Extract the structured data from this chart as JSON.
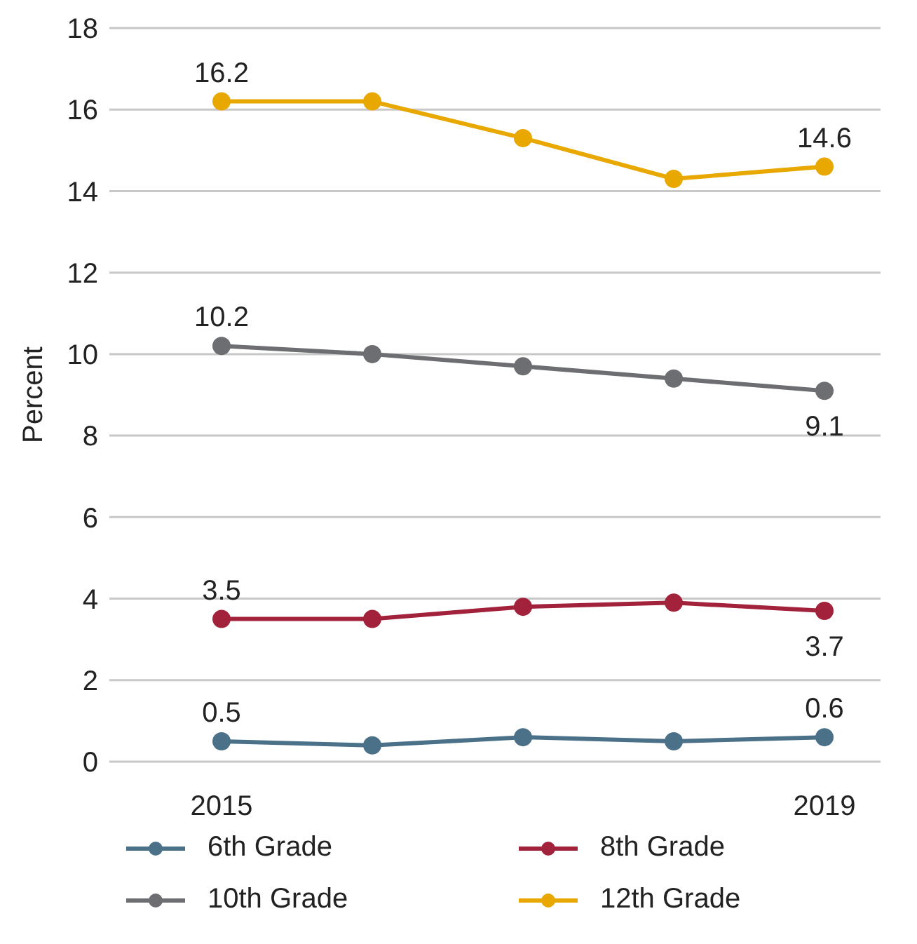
{
  "chart_data": {
    "type": "line",
    "ylabel": "Percent",
    "categories": [
      "2015",
      null,
      null,
      null,
      "2019"
    ],
    "series": [
      {
        "name": "6th Grade",
        "color": "#4b7189",
        "values": [
          0.5,
          0.4,
          0.6,
          0.5,
          0.6
        ],
        "value_labels": [
          "0.5",
          null,
          null,
          null,
          "0.6"
        ]
      },
      {
        "name": "8th Grade",
        "color": "#a3223b",
        "values": [
          3.5,
          3.5,
          3.8,
          3.9,
          3.7
        ],
        "value_labels": [
          "3.5",
          null,
          null,
          null,
          "3.7"
        ]
      },
      {
        "name": "10th Grade",
        "color": "#6d6e71",
        "values": [
          10.2,
          10.0,
          9.7,
          9.4,
          9.1
        ],
        "value_labels": [
          "10.2",
          null,
          null,
          null,
          "9.1"
        ]
      },
      {
        "name": "12th Grade",
        "color": "#e8a800",
        "values": [
          16.2,
          16.2,
          15.3,
          14.3,
          14.6
        ],
        "value_labels": [
          "16.2",
          null,
          null,
          null,
          "14.6"
        ]
      }
    ],
    "ylim": [
      0,
      18
    ],
    "yticks": [
      0,
      2,
      4,
      6,
      8,
      10,
      12,
      14,
      16,
      18
    ],
    "grid": "y",
    "legend": "bottom",
    "marker": "circle",
    "line_style": "solid"
  }
}
